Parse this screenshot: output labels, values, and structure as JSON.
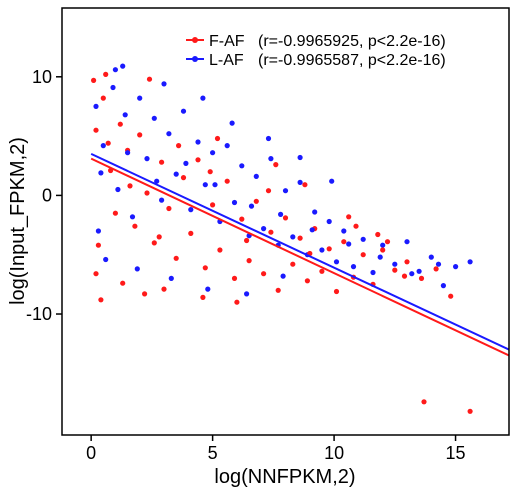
{
  "chart_data": {
    "type": "scatter",
    "title": "",
    "xlabel": "log(NNFPKM,2)",
    "ylabel": "log(Input_FPKM,2)",
    "xlim": [
      -1.2,
      17.2
    ],
    "ylim": [
      -20.2,
      15.8
    ],
    "xticks": [
      0,
      5,
      10,
      15
    ],
    "xtick_labels": [
      "0",
      "5",
      "10",
      "15"
    ],
    "yticks": [
      -10,
      0,
      10
    ],
    "ytick_labels": [
      "-10",
      "0",
      "10"
    ],
    "grid": false,
    "legend_position": "top-right",
    "series": [
      {
        "name": "F-AF",
        "stat": "(r=-0.9965925, p<2.2e-16)",
        "color": "#ff1a1a",
        "fit": {
          "x0": 0,
          "y0": 3.1,
          "x1": 17.2,
          "y1": -13.5
        },
        "points": [
          [
            0.2,
            5.5
          ],
          [
            0.5,
            8.2
          ],
          [
            0.8,
            2.1
          ],
          [
            1.0,
            -1.5
          ],
          [
            1.2,
            6.0
          ],
          [
            0.3,
            -4.2
          ],
          [
            1.5,
            3.8
          ],
          [
            1.8,
            -2.6
          ],
          [
            2.0,
            5.1
          ],
          [
            2.3,
            0.2
          ],
          [
            2.6,
            -4.0
          ],
          [
            2.9,
            2.8
          ],
          [
            3.2,
            -1.1
          ],
          [
            3.5,
            -5.3
          ],
          [
            3.8,
            1.5
          ],
          [
            4.1,
            -3.2
          ],
          [
            4.4,
            3.0
          ],
          [
            4.7,
            -6.1
          ],
          [
            5.0,
            -0.8
          ],
          [
            5.3,
            -4.6
          ],
          [
            5.6,
            1.2
          ],
          [
            5.9,
            -7.0
          ],
          [
            6.2,
            -2.0
          ],
          [
            6.5,
            -5.5
          ],
          [
            6.8,
            -0.5
          ],
          [
            7.1,
            -6.6
          ],
          [
            7.4,
            -3.1
          ],
          [
            7.7,
            -8.0
          ],
          [
            8.0,
            -1.9
          ],
          [
            8.3,
            -5.8
          ],
          [
            8.6,
            -3.6
          ],
          [
            8.9,
            -7.2
          ],
          [
            9.2,
            -2.8
          ],
          [
            9.5,
            -6.4
          ],
          [
            9.8,
            -4.5
          ],
          [
            10.1,
            -8.1
          ],
          [
            10.4,
            -3.9
          ],
          [
            10.8,
            -6.9
          ],
          [
            11.2,
            -5.0
          ],
          [
            11.6,
            -7.5
          ],
          [
            12.0,
            -4.6
          ],
          [
            12.5,
            -6.3
          ],
          [
            13.0,
            -5.6
          ],
          [
            13.6,
            -7.0
          ],
          [
            14.2,
            -6.2
          ],
          [
            14.8,
            -8.5
          ],
          [
            0.1,
            9.7
          ],
          [
            0.6,
            10.2
          ],
          [
            2.4,
            9.8
          ],
          [
            0.2,
            -6.6
          ],
          [
            0.4,
            -8.8
          ],
          [
            1.3,
            -7.4
          ],
          [
            2.2,
            -8.3
          ],
          [
            3.0,
            -7.9
          ],
          [
            4.6,
            -8.6
          ],
          [
            6.0,
            -9.0
          ],
          [
            5.2,
            4.8
          ],
          [
            7.6,
            2.6
          ],
          [
            8.8,
            0.9
          ],
          [
            10.6,
            -1.8
          ],
          [
            12.2,
            -3.9
          ],
          [
            13.7,
            -17.4
          ],
          [
            15.6,
            -18.2
          ],
          [
            0.7,
            4.4
          ],
          [
            1.6,
            0.8
          ],
          [
            2.8,
            -3.5
          ],
          [
            3.6,
            4.2
          ],
          [
            4.9,
            2.0
          ],
          [
            6.4,
            -3.8
          ],
          [
            7.3,
            0.4
          ],
          [
            9.0,
            -4.9
          ],
          [
            10.9,
            -2.6
          ],
          [
            11.8,
            -3.3
          ],
          [
            12.9,
            -6.8
          ]
        ]
      },
      {
        "name": "L-AF",
        "stat": "(r=-0.9965587, p<2.2e-16)",
        "color": "#1a1aff",
        "fit": {
          "x0": 0,
          "y0": 3.5,
          "x1": 17.2,
          "y1": -13.0
        },
        "points": [
          [
            0.2,
            7.5
          ],
          [
            0.5,
            4.2
          ],
          [
            0.9,
            9.1
          ],
          [
            1.1,
            0.5
          ],
          [
            1.4,
            6.8
          ],
          [
            1.7,
            -1.8
          ],
          [
            2.0,
            8.2
          ],
          [
            2.3,
            3.1
          ],
          [
            2.6,
            6.5
          ],
          [
            2.9,
            -0.4
          ],
          [
            3.2,
            5.2
          ],
          [
            3.5,
            1.8
          ],
          [
            3.8,
            7.1
          ],
          [
            4.1,
            -1.2
          ],
          [
            4.4,
            4.5
          ],
          [
            4.7,
            0.9
          ],
          [
            5.0,
            3.6
          ],
          [
            5.3,
            -2.2
          ],
          [
            5.6,
            4.2
          ],
          [
            5.9,
            -0.6
          ],
          [
            6.2,
            2.5
          ],
          [
            6.5,
            -3.4
          ],
          [
            6.8,
            1.6
          ],
          [
            7.1,
            -2.8
          ],
          [
            7.4,
            3.1
          ],
          [
            7.7,
            -4.2
          ],
          [
            8.0,
            0.4
          ],
          [
            8.3,
            -3.5
          ],
          [
            8.6,
            1.1
          ],
          [
            8.9,
            -5.0
          ],
          [
            9.2,
            -1.4
          ],
          [
            9.5,
            -4.6
          ],
          [
            9.8,
            -2.2
          ],
          [
            10.1,
            -5.6
          ],
          [
            10.4,
            -3.0
          ],
          [
            10.8,
            -6.0
          ],
          [
            11.2,
            -3.7
          ],
          [
            11.6,
            -6.5
          ],
          [
            12.0,
            -4.2
          ],
          [
            12.5,
            -5.8
          ],
          [
            13.0,
            -3.9
          ],
          [
            13.5,
            -6.4
          ],
          [
            14.0,
            -5.2
          ],
          [
            14.5,
            -7.6
          ],
          [
            15.0,
            -6.0
          ],
          [
            15.6,
            -5.6
          ],
          [
            1.0,
            10.6
          ],
          [
            1.3,
            10.9
          ],
          [
            3.0,
            9.4
          ],
          [
            4.6,
            8.2
          ],
          [
            5.8,
            6.1
          ],
          [
            7.3,
            4.8
          ],
          [
            8.6,
            3.2
          ],
          [
            9.9,
            1.2
          ],
          [
            0.3,
            -3.0
          ],
          [
            0.6,
            -5.4
          ],
          [
            1.9,
            -6.2
          ],
          [
            3.3,
            -7.0
          ],
          [
            4.8,
            -7.9
          ],
          [
            6.4,
            -8.3
          ],
          [
            7.9,
            -6.8
          ],
          [
            0.4,
            1.9
          ],
          [
            1.5,
            3.6
          ],
          [
            2.7,
            1.2
          ],
          [
            3.9,
            2.7
          ],
          [
            5.1,
            0.9
          ],
          [
            6.6,
            -0.9
          ],
          [
            7.8,
            -1.6
          ],
          [
            9.1,
            -2.9
          ],
          [
            10.6,
            -4.1
          ],
          [
            11.9,
            -5.2
          ],
          [
            13.2,
            -6.6
          ],
          [
            14.3,
            -5.8
          ]
        ]
      }
    ]
  }
}
